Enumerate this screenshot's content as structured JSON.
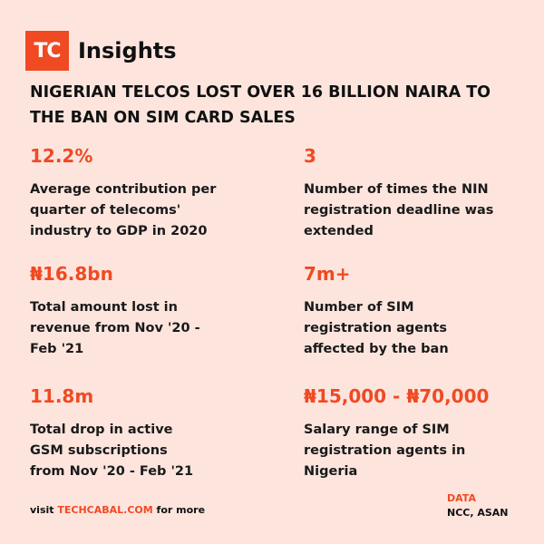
{
  "brand": {
    "logo_mark": "TC",
    "name": "Insights"
  },
  "headline": {
    "line1": "NIGERIAN TELCOS LOST OVER 16 BILLION NAIRA TO",
    "line2": "THE BAN ON SIM CARD SALES"
  },
  "stats": [
    {
      "value": "12.2%",
      "desc": [
        "Average contribution per",
        "quarter of telecoms'",
        "industry to GDP in 2020"
      ]
    },
    {
      "value": "3",
      "desc": [
        "Number of times the NIN",
        "registration deadline was",
        "extended"
      ]
    },
    {
      "value": "₦16.8bn",
      "desc": [
        "Total amount lost in",
        "revenue from Nov '20 -",
        "Feb '21"
      ]
    },
    {
      "value": "7m+",
      "desc": [
        "Number of SIM",
        "registration agents",
        "affected by the ban"
      ]
    },
    {
      "value": "11.8m",
      "desc": [
        "Total drop in active",
        "GSM subscriptions",
        "from Nov '20 - Feb '21"
      ]
    },
    {
      "value": "₦15,000 - ₦70,000",
      "desc": [
        "Salary range of SIM",
        "registration agents in",
        "Nigeria"
      ]
    }
  ],
  "footer": {
    "prefix": "visit ",
    "link": "TECHCABAL.COM",
    "suffix": " for more"
  },
  "data_source": {
    "label": "DATA",
    "value": "NCC, ASAN"
  },
  "colors": {
    "background": "#fde5de",
    "accent": "#f04a23",
    "text": "#111111"
  }
}
